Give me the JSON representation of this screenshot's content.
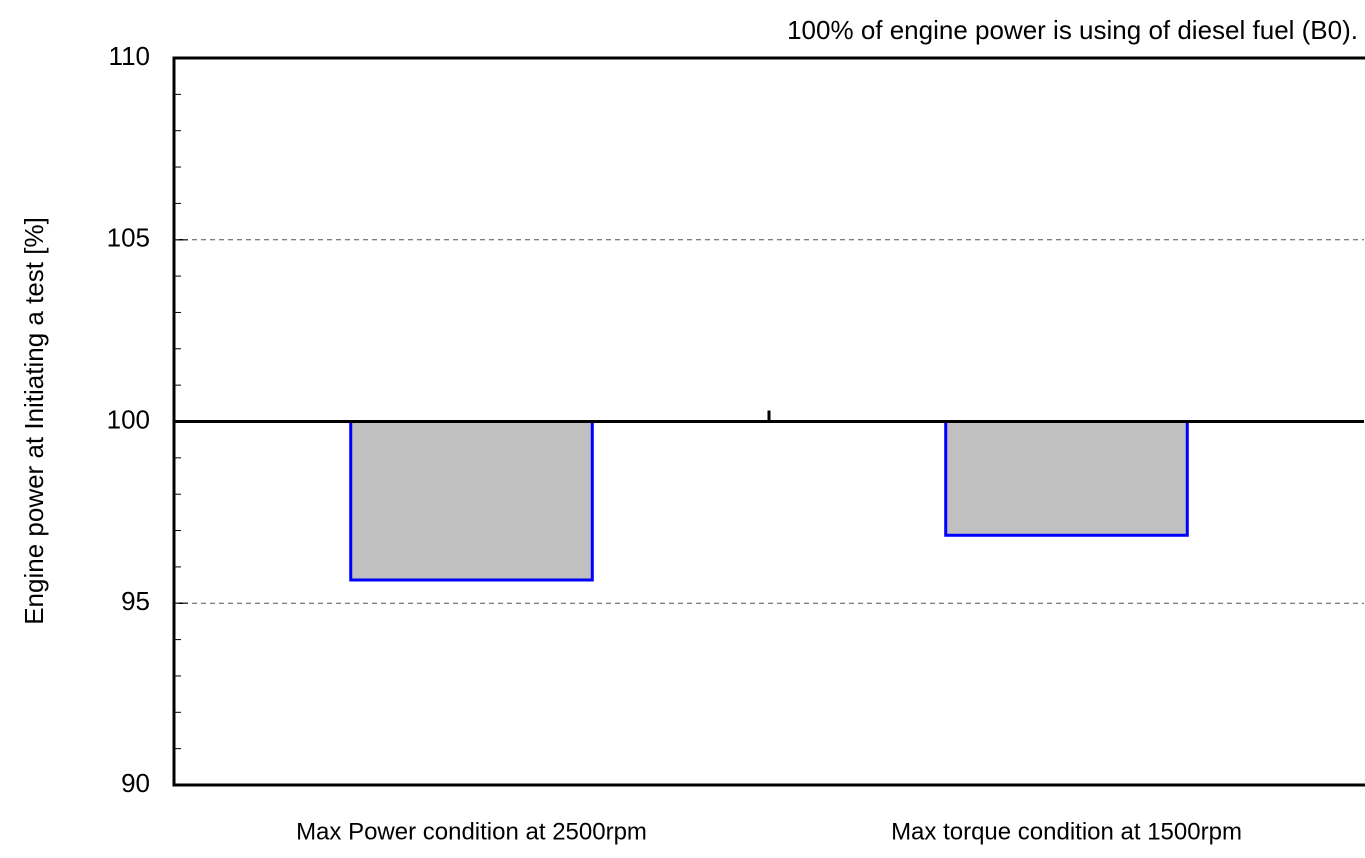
{
  "chart_data": {
    "type": "bar",
    "annotation": "100% of engine power is using of diesel fuel (B0).",
    "ylabel": "Engine power at Initiating a test [%]",
    "categories": [
      "Max Power condition at 2500rpm",
      "Max torque condition at 1500rpm"
    ],
    "values": [
      95.64,
      96.87
    ],
    "baseline": 100,
    "color": "#c0c0c0",
    "edge_color": "#0000ff",
    "ylim": [
      90,
      110
    ],
    "yticks": [
      90,
      95,
      100,
      105,
      110
    ],
    "yminorticks": [
      91,
      92,
      93,
      94,
      96,
      97,
      98,
      99,
      101,
      102,
      103,
      104,
      106,
      107,
      108,
      109
    ],
    "grid": true
  }
}
